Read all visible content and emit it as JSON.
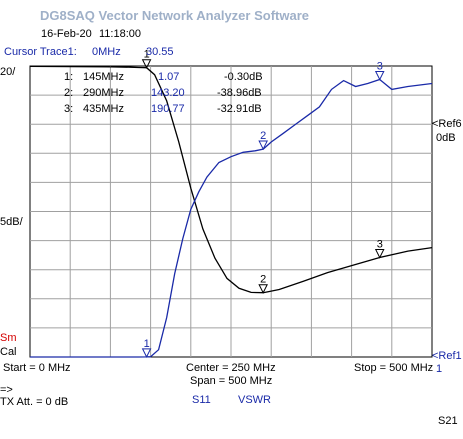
{
  "app": {
    "title": "DG8SAQ Vector Network Analyzer Software",
    "date": "16-Feb-20",
    "time": "11:18:00"
  },
  "cursor": {
    "label": "Cursor Trace1:",
    "freq": "0MHz",
    "value": "30.55"
  },
  "markers_table": [
    {
      "num": "1:",
      "freq": "145MHz",
      "vswr": "1.07",
      "s11": "-0.30dB"
    },
    {
      "num": "2:",
      "freq": "290MHz",
      "vswr": "143.20",
      "s11": "-38.96dB"
    },
    {
      "num": "3:",
      "freq": "435MHz",
      "vswr": "190.77",
      "s11": "-32.91dB"
    }
  ],
  "left_labels": {
    "top_scale": "20/",
    "mid_scale": "5dB/",
    "sm": "Sm",
    "cal": "Cal",
    "arrow": "=>",
    "tx_att": "TX Att. = 0 dB"
  },
  "right_labels": {
    "ref6_line1": "<Ref6",
    "ref6_line2": "0dB",
    "ref1_line1": "<Ref1",
    "ref1_line2": "1"
  },
  "axis": {
    "start": "Start = 0 MHz",
    "center": "Center = 250 MHz",
    "span": "Span = 500 MHz",
    "stop": "Stop = 500 MHz"
  },
  "legend": {
    "trace1": "S11",
    "trace2": "VSWR"
  },
  "footer": {
    "param": "S21"
  },
  "colors": {
    "s11_trace": "#000000",
    "vswr_trace": "#1a2aa8",
    "grid": "#a0a0a0",
    "title": "#9fb0c8",
    "sm": "#d40000"
  },
  "chart_data": {
    "type": "line",
    "x_unit": "MHz",
    "xlim": [
      0,
      500
    ],
    "grid": true,
    "series": [
      {
        "name": "S11",
        "y_unit": "dB",
        "ylim": [
          -50,
          0
        ],
        "x": [
          0,
          50,
          100,
          125,
          135,
          145,
          155,
          170,
          185,
          200,
          215,
          230,
          245,
          260,
          275,
          290,
          310,
          340,
          370,
          400,
          435,
          470,
          500
        ],
        "values": [
          -0.05,
          -0.1,
          -0.15,
          -0.2,
          -0.25,
          -0.3,
          -1.5,
          -6,
          -13,
          -21,
          -28,
          -33,
          -36.5,
          -38.2,
          -38.9,
          -38.96,
          -38.4,
          -37,
          -35.5,
          -34.3,
          -32.91,
          -31.8,
          -31.2
        ]
      },
      {
        "name": "VSWR",
        "y_unit": "ratio",
        "ylim": [
          1,
          200
        ],
        "x": [
          0,
          50,
          80,
          110,
          135,
          145,
          150,
          160,
          170,
          180,
          190,
          200,
          210,
          220,
          235,
          250,
          265,
          280,
          290,
          300,
          315,
          330,
          345,
          360,
          375,
          390,
          405,
          420,
          435,
          450,
          470,
          500
        ],
        "values": [
          1.0,
          1.0,
          1.0,
          1.0,
          1.0,
          1.07,
          1.2,
          6,
          28,
          58,
          82,
          102,
          114,
          124,
          134,
          138,
          141,
          142,
          143.2,
          148,
          154,
          160,
          166,
          172,
          184,
          190,
          186,
          188,
          190.77,
          184,
          186,
          188
        ]
      }
    ],
    "markers": [
      {
        "label": "1",
        "trace": "S11",
        "x": 145,
        "y": -0.3
      },
      {
        "label": "2",
        "trace": "S11",
        "x": 290,
        "y": -38.96
      },
      {
        "label": "3",
        "trace": "S11",
        "x": 435,
        "y": -32.91
      },
      {
        "label": "1",
        "trace": "VSWR",
        "x": 145,
        "y": 1.07
      },
      {
        "label": "2",
        "trace": "VSWR",
        "x": 290,
        "y": 143.2
      },
      {
        "label": "3",
        "trace": "VSWR",
        "x": 435,
        "y": 190.77
      }
    ]
  }
}
